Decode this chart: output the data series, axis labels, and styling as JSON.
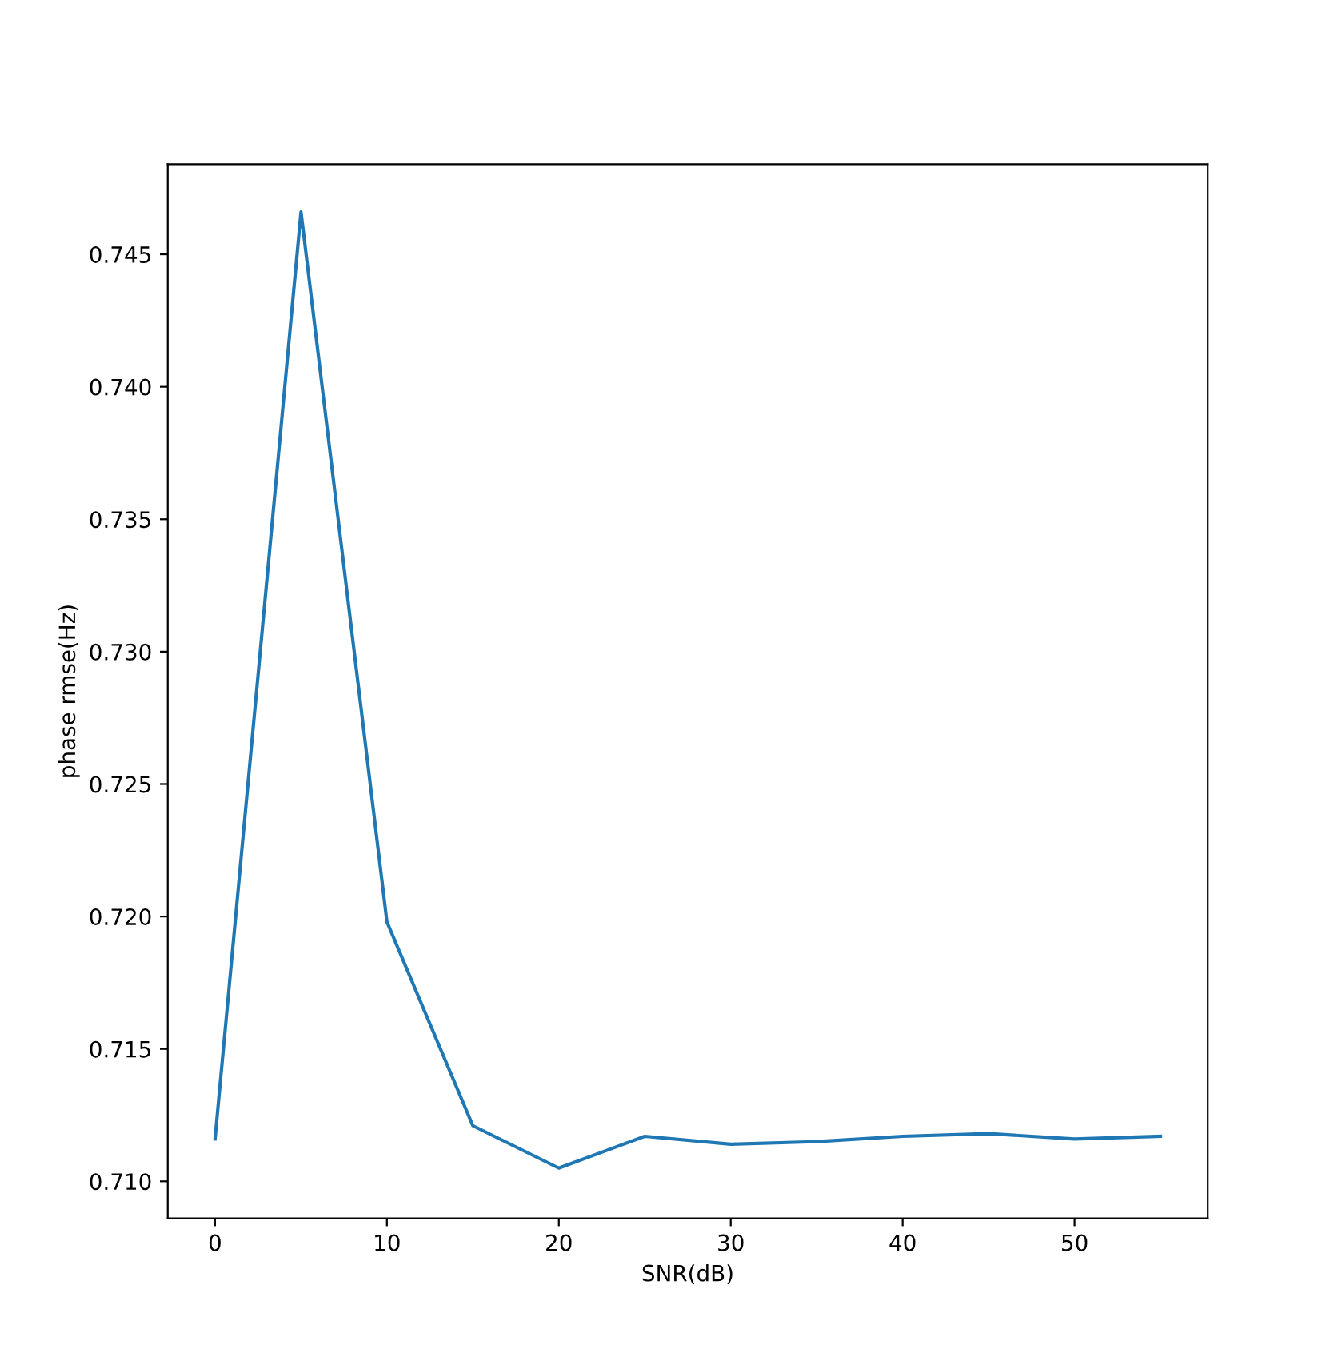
{
  "chart_data": {
    "type": "line",
    "xlabel": "SNR(dB)",
    "ylabel": "phase rmse(Hz)",
    "x": [
      0,
      5,
      10,
      15,
      20,
      25,
      30,
      35,
      40,
      45,
      50,
      55
    ],
    "series": [
      {
        "color": "#1f77b4",
        "values": [
          0.7116,
          0.7466,
          0.7198,
          0.7121,
          0.7105,
          0.7117,
          0.7114,
          0.7115,
          0.7117,
          0.7118,
          0.7116,
          0.7117
        ]
      }
    ],
    "xlim": [
      -2.75,
      57.75
    ],
    "xticks": [
      0,
      10,
      20,
      30,
      40,
      50
    ],
    "ylim": [
      0.7086,
      0.7484
    ],
    "yticks": [
      {
        "value": 0.71,
        "label": "0.710"
      },
      {
        "value": 0.715,
        "label": "0.715"
      },
      {
        "value": 0.72,
        "label": "0.720"
      },
      {
        "value": 0.725,
        "label": "0.725"
      },
      {
        "value": 0.73,
        "label": "0.730"
      },
      {
        "value": 0.735,
        "label": "0.735"
      },
      {
        "value": 0.74,
        "label": "0.740"
      },
      {
        "value": 0.745,
        "label": "0.745"
      }
    ],
    "grid": false,
    "marker": "none",
    "line_style": "solid"
  }
}
